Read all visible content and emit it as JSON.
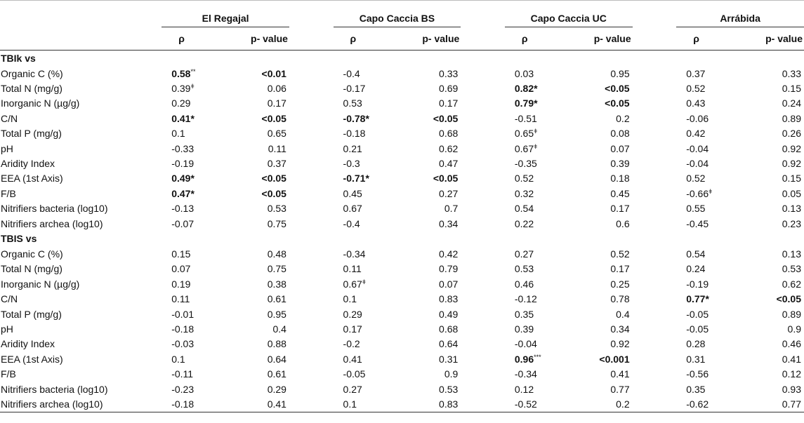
{
  "sites": [
    "El Regajal",
    "Capo Caccia BS",
    "Capo Caccia UC",
    "Arrábida"
  ],
  "col_rho": "ρ",
  "col_p": "p- value",
  "groups": [
    {
      "title": "TBIk vs",
      "rows": [
        {
          "label": "Organic C (%)",
          "cells": [
            [
              "0.58",
              "**",
              true
            ],
            [
              "<0.01",
              "",
              true
            ],
            [
              "-0.4",
              "",
              false
            ],
            [
              "0.33",
              "",
              false
            ],
            [
              "0.03",
              "",
              false
            ],
            [
              "0.95",
              "",
              false
            ],
            [
              "0.37",
              "",
              false
            ],
            [
              "0.33",
              "",
              false
            ]
          ]
        },
        {
          "label": "Total N (mg/g)",
          "cells": [
            [
              "0.39",
              "ǂ",
              false
            ],
            [
              "0.06",
              "",
              false
            ],
            [
              "-0.17",
              "",
              false
            ],
            [
              "0.69",
              "",
              false
            ],
            [
              "0.82*",
              "",
              true
            ],
            [
              "<0.05",
              "",
              true
            ],
            [
              "0.52",
              "",
              false
            ],
            [
              "0.15",
              "",
              false
            ]
          ]
        },
        {
          "label": "Inorganic N (µg/g)",
          "cells": [
            [
              "0.29",
              "",
              false
            ],
            [
              "0.17",
              "",
              false
            ],
            [
              "0.53",
              "",
              false
            ],
            [
              "0.17",
              "",
              false
            ],
            [
              "0.79*",
              "",
              true
            ],
            [
              "<0.05",
              "",
              true
            ],
            [
              "0.43",
              "",
              false
            ],
            [
              "0.24",
              "",
              false
            ]
          ]
        },
        {
          "label": "C/N",
          "cells": [
            [
              "0.41*",
              "",
              true
            ],
            [
              "<0.05",
              "",
              true
            ],
            [
              "-0.78*",
              "",
              true
            ],
            [
              "<0.05",
              "",
              true
            ],
            [
              "-0.51",
              "",
              false
            ],
            [
              "0.2",
              "",
              false
            ],
            [
              "-0.06",
              "",
              false
            ],
            [
              "0.89",
              "",
              false
            ]
          ]
        },
        {
          "label": "Total P (mg/g)",
          "cells": [
            [
              "0.1",
              "",
              false
            ],
            [
              "0.65",
              "",
              false
            ],
            [
              "-0.18",
              "",
              false
            ],
            [
              "0.68",
              "",
              false
            ],
            [
              "0.65",
              "ǂ",
              false
            ],
            [
              "0.08",
              "",
              false
            ],
            [
              "0.42",
              "",
              false
            ],
            [
              "0.26",
              "",
              false
            ]
          ]
        },
        {
          "label": "pH",
          "cells": [
            [
              "-0.33",
              "",
              false
            ],
            [
              "0.11",
              "",
              false
            ],
            [
              "0.21",
              "",
              false
            ],
            [
              "0.62",
              "",
              false
            ],
            [
              "0.67",
              "ǂ",
              false
            ],
            [
              "0.07",
              "",
              false
            ],
            [
              "-0.04",
              "",
              false
            ],
            [
              "0.92",
              "",
              false
            ]
          ]
        },
        {
          "label": "Aridity Index",
          "cells": [
            [
              "-0.19",
              "",
              false
            ],
            [
              "0.37",
              "",
              false
            ],
            [
              "-0.3",
              "",
              false
            ],
            [
              "0.47",
              "",
              false
            ],
            [
              "-0.35",
              "",
              false
            ],
            [
              "0.39",
              "",
              false
            ],
            [
              "-0.04",
              "",
              false
            ],
            [
              "0.92",
              "",
              false
            ]
          ]
        },
        {
          "label": "EEA (1st Axis)",
          "cells": [
            [
              "0.49*",
              "",
              true
            ],
            [
              "<0.05",
              "",
              true
            ],
            [
              "-0.71*",
              "",
              true
            ],
            [
              "<0.05",
              "",
              true
            ],
            [
              "0.52",
              "",
              false
            ],
            [
              "0.18",
              "",
              false
            ],
            [
              "0.52",
              "",
              false
            ],
            [
              "0.15",
              "",
              false
            ]
          ]
        },
        {
          "label": "F/B",
          "cells": [
            [
              "0.47*",
              "",
              true
            ],
            [
              "<0.05",
              "",
              true
            ],
            [
              "0.45",
              "",
              false
            ],
            [
              "0.27",
              "",
              false
            ],
            [
              "0.32",
              "",
              false
            ],
            [
              "0.45",
              "",
              false
            ],
            [
              "-0.66",
              "ǂ",
              false
            ],
            [
              "0.05",
              "",
              false
            ]
          ]
        },
        {
          "label": "Nitrifiers bacteria (log10)",
          "cells": [
            [
              "-0.13",
              "",
              false
            ],
            [
              "0.53",
              "",
              false
            ],
            [
              "0.67",
              "",
              false
            ],
            [
              "0.7",
              "",
              false
            ],
            [
              "0.54",
              "",
              false
            ],
            [
              "0.17",
              "",
              false
            ],
            [
              "0.55",
              "",
              false
            ],
            [
              "0.13",
              "",
              false
            ]
          ]
        },
        {
          "label": "Nitrifiers archea (log10)",
          "cells": [
            [
              "-0.07",
              "",
              false
            ],
            [
              "0.75",
              "",
              false
            ],
            [
              "-0.4",
              "",
              false
            ],
            [
              "0.34",
              "",
              false
            ],
            [
              "0.22",
              "",
              false
            ],
            [
              "0.6",
              "",
              false
            ],
            [
              "-0.45",
              "",
              false
            ],
            [
              "0.23",
              "",
              false
            ]
          ]
        }
      ]
    },
    {
      "title": "TBIS vs",
      "rows": [
        {
          "label": "Organic C (%)",
          "cells": [
            [
              "0.15",
              "",
              false
            ],
            [
              "0.48",
              "",
              false
            ],
            [
              "-0.34",
              "",
              false
            ],
            [
              "0.42",
              "",
              false
            ],
            [
              "0.27",
              "",
              false
            ],
            [
              "0.52",
              "",
              false
            ],
            [
              "0.54",
              "",
              false
            ],
            [
              "0.13",
              "",
              false
            ]
          ]
        },
        {
          "label": "Total N (mg/g)",
          "cells": [
            [
              "0.07",
              "",
              false
            ],
            [
              "0.75",
              "",
              false
            ],
            [
              "0.11",
              "",
              false
            ],
            [
              "0.79",
              "",
              false
            ],
            [
              "0.53",
              "",
              false
            ],
            [
              "0.17",
              "",
              false
            ],
            [
              "0.24",
              "",
              false
            ],
            [
              "0.53",
              "",
              false
            ]
          ]
        },
        {
          "label": "Inorganic N (µg/g)",
          "cells": [
            [
              "0.19",
              "",
              false
            ],
            [
              "0.38",
              "",
              false
            ],
            [
              "0.67",
              "ǂ",
              false
            ],
            [
              "0.07",
              "",
              false
            ],
            [
              "0.46",
              "",
              false
            ],
            [
              "0.25",
              "",
              false
            ],
            [
              "-0.19",
              "",
              false
            ],
            [
              "0.62",
              "",
              false
            ]
          ]
        },
        {
          "label": "C/N",
          "cells": [
            [
              "0.11",
              "",
              false
            ],
            [
              "0.61",
              "",
              false
            ],
            [
              "0.1",
              "",
              false
            ],
            [
              "0.83",
              "",
              false
            ],
            [
              "-0.12",
              "",
              false
            ],
            [
              "0.78",
              "",
              false
            ],
            [
              "0.77*",
              "",
              true
            ],
            [
              "<0.05",
              "",
              true
            ]
          ]
        },
        {
          "label": "Total P (mg/g)",
          "cells": [
            [
              "-0.01",
              "",
              false
            ],
            [
              "0.95",
              "",
              false
            ],
            [
              "0.29",
              "",
              false
            ],
            [
              "0.49",
              "",
              false
            ],
            [
              "0.35",
              "",
              false
            ],
            [
              "0.4",
              "",
              false
            ],
            [
              "-0.05",
              "",
              false
            ],
            [
              "0.89",
              "",
              false
            ]
          ]
        },
        {
          "label": "pH",
          "cells": [
            [
              "-0.18",
              "",
              false
            ],
            [
              "0.4",
              "",
              false
            ],
            [
              "0.17",
              "",
              false
            ],
            [
              "0.68",
              "",
              false
            ],
            [
              "0.39",
              "",
              false
            ],
            [
              "0.34",
              "",
              false
            ],
            [
              "-0.05",
              "",
              false
            ],
            [
              "0.9",
              "",
              false
            ]
          ]
        },
        {
          "label": "Aridity Index",
          "cells": [
            [
              "-0.03",
              "",
              false
            ],
            [
              "0.88",
              "",
              false
            ],
            [
              "-0.2",
              "",
              false
            ],
            [
              "0.64",
              "",
              false
            ],
            [
              "-0.04",
              "",
              false
            ],
            [
              "0.92",
              "",
              false
            ],
            [
              "0.28",
              "",
              false
            ],
            [
              "0.46",
              "",
              false
            ]
          ]
        },
        {
          "label": "EEA (1st Axis)",
          "cells": [
            [
              "0.1",
              "",
              false
            ],
            [
              "0.64",
              "",
              false
            ],
            [
              "0.41",
              "",
              false
            ],
            [
              "0.31",
              "",
              false
            ],
            [
              "0.96",
              "***",
              true
            ],
            [
              "<0.001",
              "",
              true
            ],
            [
              "0.31",
              "",
              false
            ],
            [
              "0.41",
              "",
              false
            ]
          ]
        },
        {
          "label": "F/B",
          "cells": [
            [
              "-0.11",
              "",
              false
            ],
            [
              "0.61",
              "",
              false
            ],
            [
              "-0.05",
              "",
              false
            ],
            [
              "0.9",
              "",
              false
            ],
            [
              "-0.34",
              "",
              false
            ],
            [
              "0.41",
              "",
              false
            ],
            [
              "-0.56",
              "",
              false
            ],
            [
              "0.12",
              "",
              false
            ]
          ]
        },
        {
          "label": "Nitrifiers bacteria (log10)",
          "cells": [
            [
              "-0.23",
              "",
              false
            ],
            [
              "0.29",
              "",
              false
            ],
            [
              "0.27",
              "",
              false
            ],
            [
              "0.53",
              "",
              false
            ],
            [
              "0.12",
              "",
              false
            ],
            [
              "0.77",
              "",
              false
            ],
            [
              "0.35",
              "",
              false
            ],
            [
              "0.93",
              "",
              false
            ]
          ]
        },
        {
          "label": "Nitrifiers archea (log10)",
          "cells": [
            [
              "-0.18",
              "",
              false
            ],
            [
              "0.41",
              "",
              false
            ],
            [
              "0.1",
              "",
              false
            ],
            [
              "0.83",
              "",
              false
            ],
            [
              "-0.52",
              "",
              false
            ],
            [
              "0.2",
              "",
              false
            ],
            [
              "-0.62",
              "",
              false
            ],
            [
              "0.77",
              "",
              false
            ]
          ]
        }
      ]
    }
  ]
}
